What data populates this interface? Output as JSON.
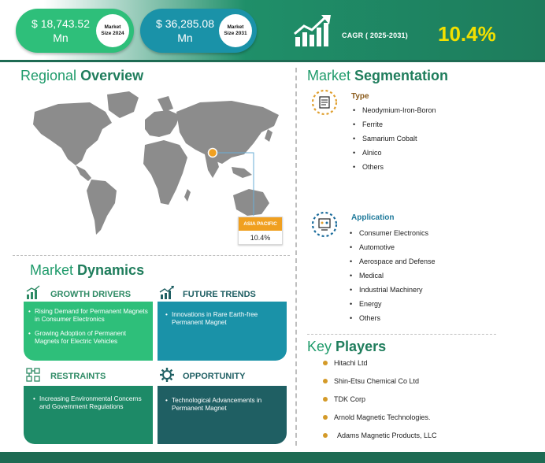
{
  "banner": {
    "market_size_2024": {
      "value_line1": "$ 18,743.52",
      "value_line2": "Mn",
      "badge_line1": "Market",
      "badge_line2": "Size 2024"
    },
    "market_size_2031": {
      "value_line1": "$ 36,285.08",
      "value_line2": "Mn",
      "badge_line1": "Market",
      "badge_line2": "Size 2031"
    },
    "cagr_label": "CAGR ( 2025-2031)",
    "cagr_value": "10.4%",
    "icon": "growth-chart-icon"
  },
  "regional_overview": {
    "title_light": "Regional",
    "title_bold": "Overview",
    "highlight_region": "ASIA PACIFIC",
    "highlight_value": "10.4%",
    "colors": {
      "land": "#8c8c8c",
      "marker": "#f0a020"
    }
  },
  "market_dynamics": {
    "title_light": "Market",
    "title_bold": "Dynamics",
    "growth_drivers": {
      "heading": "GROWTH DRIVERS",
      "icon": "bar-growth-icon",
      "items": [
        "Rising Demand for Permanent Magnets in Consumer Electronics",
        "Growing Adoption of Permanent Magnets for Electric Vehicles"
      ]
    },
    "future_trends": {
      "heading": "FUTURE TRENDS",
      "icon": "trend-icon",
      "items": [
        "Innovations in Rare Earth-free Permanent Magnet"
      ]
    },
    "restraints": {
      "heading": "RESTRAINTS",
      "icon": "restraint-icon",
      "items": [
        "Increasing Environmental Concerns and Government Regulations"
      ]
    },
    "opportunity": {
      "heading": "OPPORTUNITY",
      "icon": "gear-icon",
      "items": [
        "Technological Advancements in Permanent Magnet"
      ]
    }
  },
  "market_segmentation": {
    "title_light": "Market",
    "title_bold": "Segmentation",
    "type": {
      "heading": "Type",
      "icon": "type-icon",
      "items": [
        "Neodymium-Iron-Boron",
        "Ferrite",
        "Samarium Cobalt",
        "Alnico",
        "Others"
      ]
    },
    "application": {
      "heading": "Application",
      "icon": "application-icon",
      "items": [
        "Consumer Electronics",
        "Automotive",
        "Aerospace and Defense",
        "Medical",
        "Industrial Machinery",
        "Energy",
        "Others"
      ]
    }
  },
  "key_players": {
    "title_light": "Key",
    "title_bold": "Players",
    "items": [
      "Hitachi Ltd",
      "Shin-Etsu Chemical Co Ltd",
      "TDK Corp",
      "Arnold Magnetic Technologies.",
      "Adams Magnetic Products, LLC"
    ]
  },
  "colors": {
    "primary_green": "#2ebf7a",
    "teal": "#1a92a8",
    "dark_green": "#1e6b53",
    "accent_yellow": "#f2e000",
    "accent_orange": "#f0a020"
  }
}
